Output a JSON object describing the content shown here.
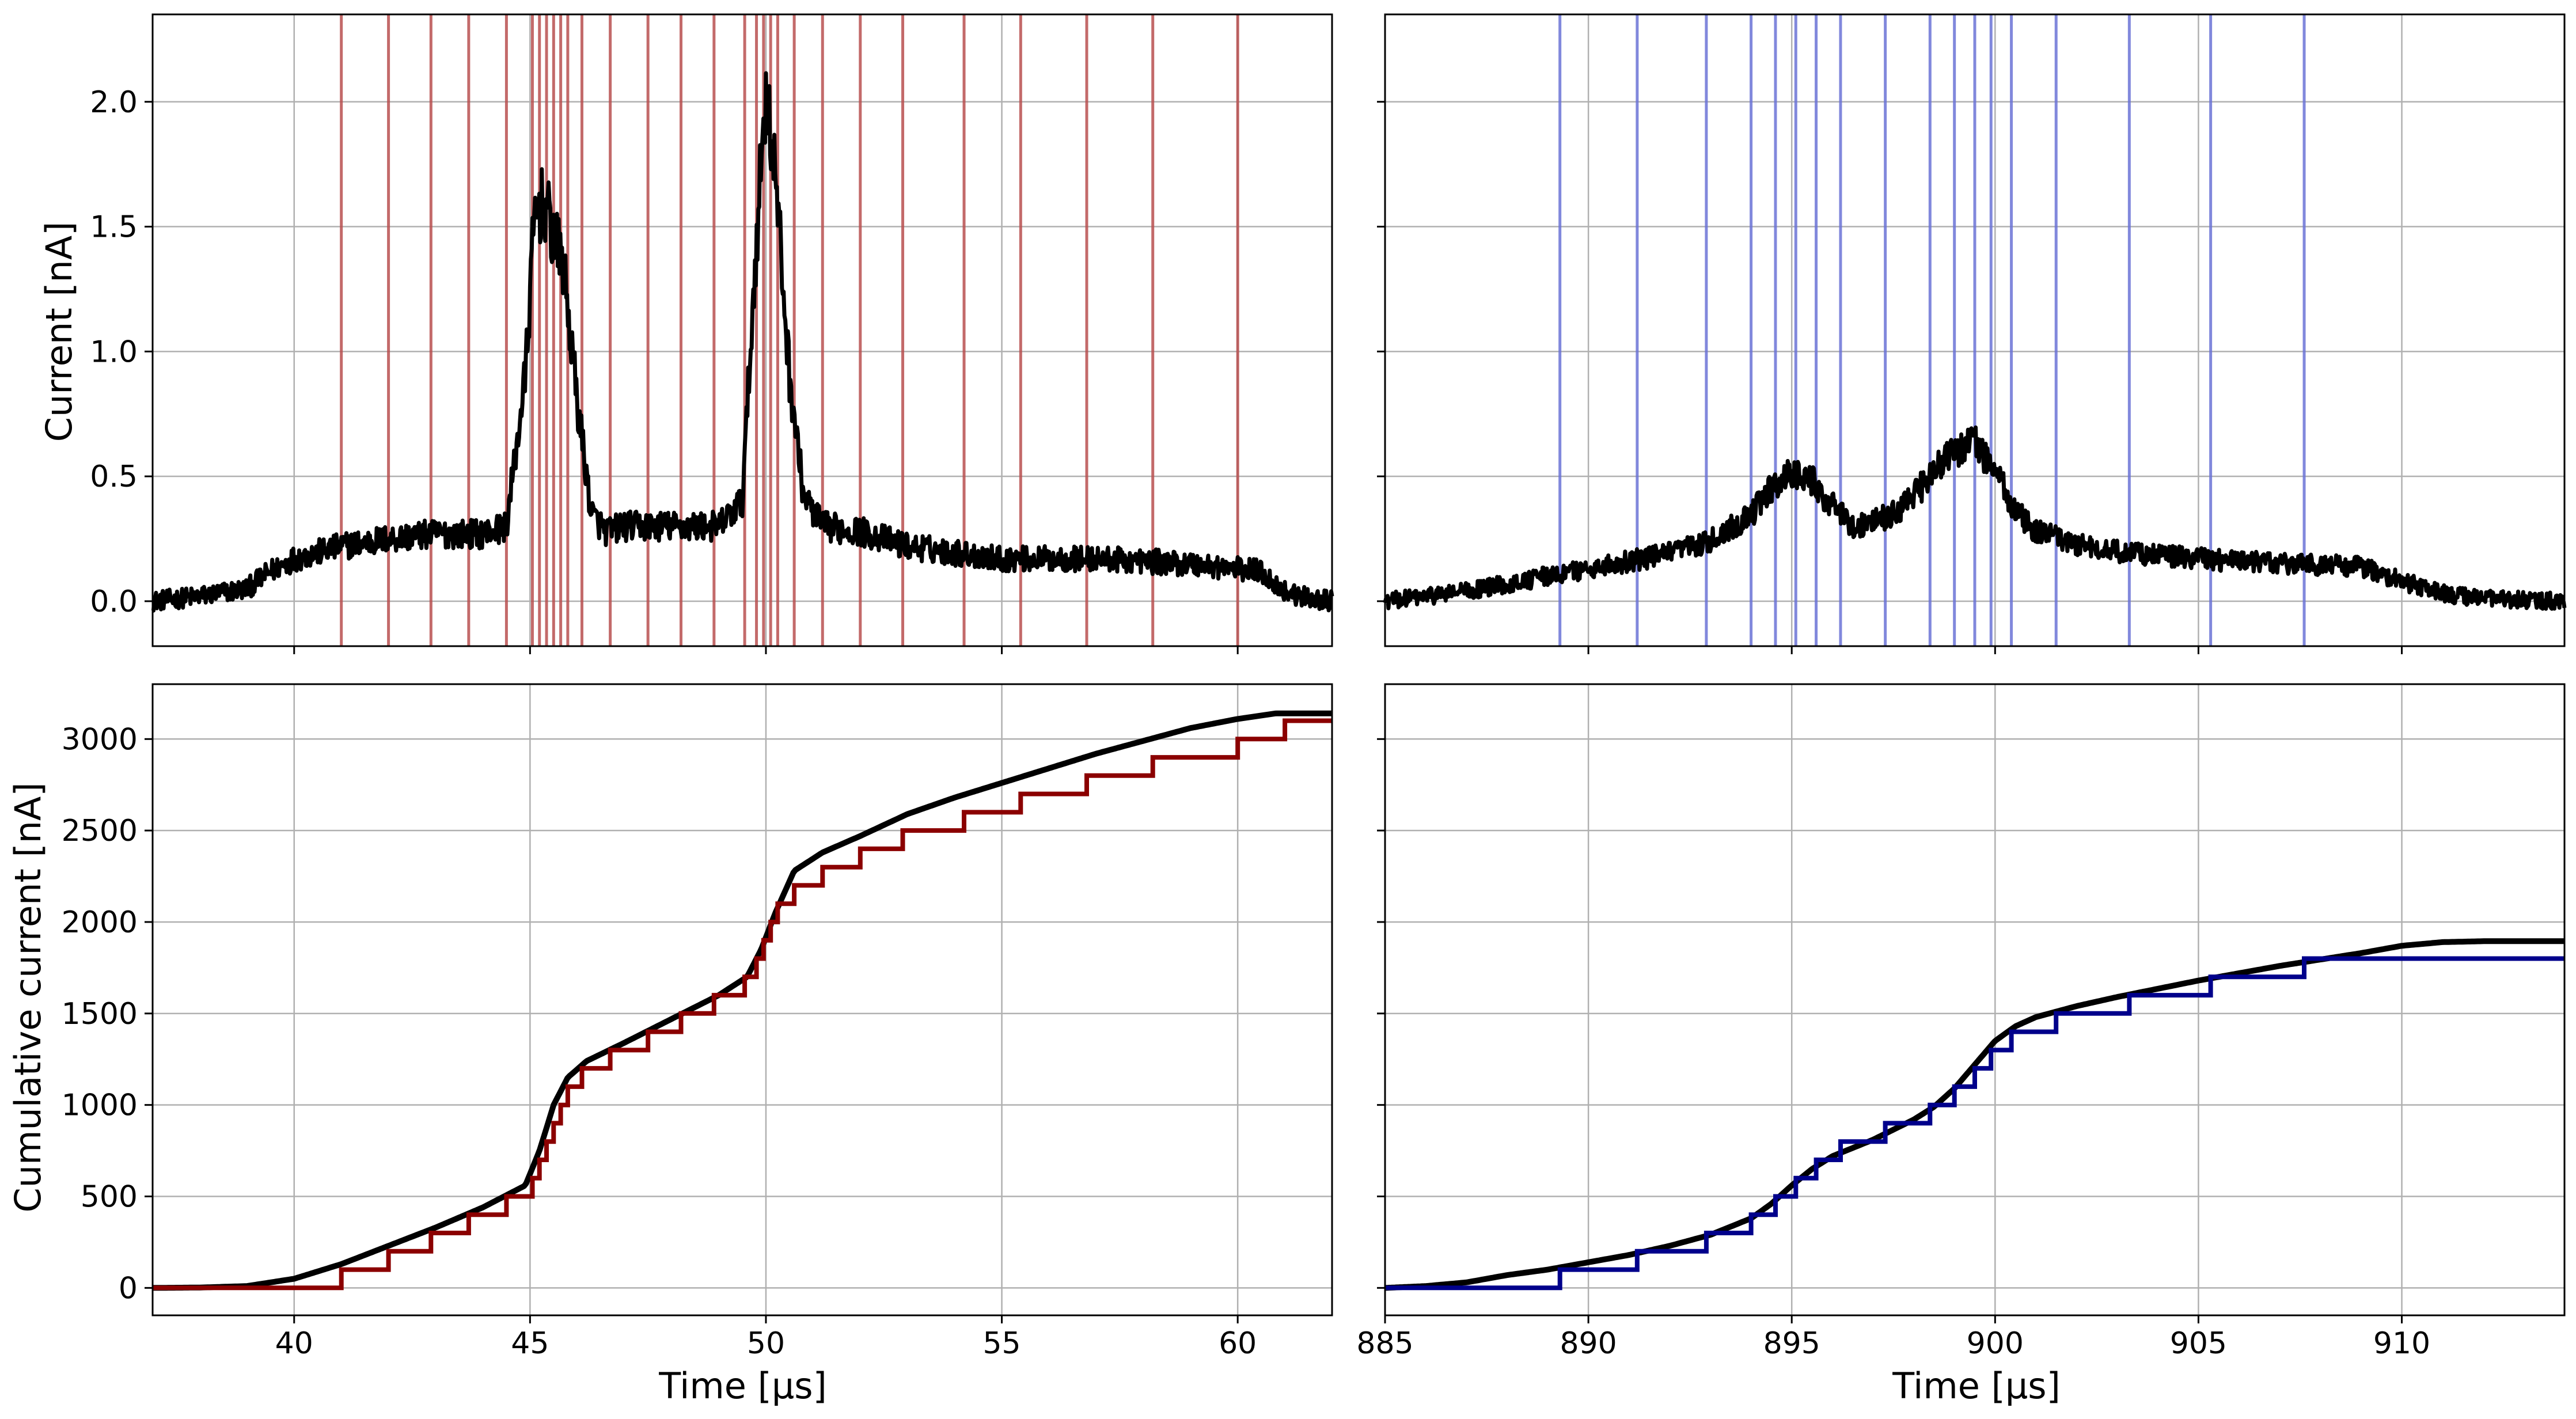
{
  "colors": {
    "signal": "#000000",
    "red_markers": "#b85050",
    "blue_markers": "#6b73d6",
    "red_steps": "#8b0000",
    "blue_steps": "#00008b",
    "grid": "#b0b0b0"
  },
  "chart_data": [
    {
      "id": "top-left",
      "type": "line",
      "ylabel": "Current [nA]",
      "xlabel": "",
      "xlim": [
        37,
        62
      ],
      "ylim": [
        -0.18,
        2.35
      ],
      "xticks": [
        40,
        45,
        50,
        55,
        60
      ],
      "yticks": [
        0.0,
        0.5,
        1.0,
        1.5,
        2.0
      ],
      "ytick_labels": [
        "0.0",
        "0.5",
        "1.0",
        "1.5",
        "2.0"
      ],
      "show_x_tick_labels": false,
      "grid": true,
      "series": [
        {
          "style": "noisy-signal",
          "color": "#000000",
          "noise_amplitude": 0.065,
          "x": [
            37,
            38,
            39,
            39.5,
            40,
            41,
            42,
            43,
            44,
            44.5,
            44.9,
            45.1,
            45.3,
            45.5,
            45.7,
            46.0,
            46.3,
            46.6,
            47,
            48,
            49,
            49.5,
            49.8,
            50.0,
            50.2,
            50.5,
            50.8,
            51.2,
            52,
            53,
            55,
            57,
            59,
            60.5,
            60.9,
            61.3,
            62
          ],
          "y": [
            0.0,
            0.02,
            0.05,
            0.12,
            0.17,
            0.22,
            0.25,
            0.27,
            0.27,
            0.3,
            0.9,
            1.55,
            1.6,
            1.45,
            1.35,
            0.8,
            0.35,
            0.28,
            0.3,
            0.3,
            0.3,
            0.4,
            1.45,
            2.05,
            1.7,
            0.9,
            0.42,
            0.3,
            0.28,
            0.22,
            0.17,
            0.17,
            0.15,
            0.12,
            0.05,
            0.02,
            0.0
          ]
        }
      ],
      "vlines": {
        "color": "#b85050",
        "x": [
          41.0,
          42.0,
          42.9,
          43.7,
          44.5,
          45.05,
          45.2,
          45.35,
          45.5,
          45.65,
          45.8,
          46.1,
          46.7,
          47.5,
          48.2,
          48.9,
          49.55,
          49.8,
          49.95,
          50.1,
          50.25,
          50.6,
          51.2,
          52.0,
          52.9,
          54.2,
          55.4,
          56.8,
          58.2,
          60.0
        ]
      }
    },
    {
      "id": "top-right",
      "type": "line",
      "ylabel": "",
      "xlabel": "",
      "xlim": [
        885,
        914
      ],
      "ylim": [
        -0.18,
        2.35
      ],
      "xticks": [
        890,
        895,
        900,
        905,
        910
      ],
      "yticks": [
        0.0,
        0.5,
        1.0,
        1.5,
        2.0
      ],
      "show_x_tick_labels": false,
      "grid": true,
      "series": [
        {
          "style": "noisy-signal",
          "color": "#000000",
          "noise_amplitude": 0.055,
          "x": [
            885,
            886,
            887,
            888,
            889,
            890,
            891,
            892,
            893,
            894,
            894.5,
            895,
            895.5,
            896,
            896.5,
            897,
            897.5,
            898,
            898.5,
            899,
            899.5,
            900,
            900.5,
            901,
            902,
            903,
            905,
            907,
            909,
            910,
            911,
            912,
            914
          ],
          "y": [
            0.0,
            0.02,
            0.04,
            0.07,
            0.1,
            0.13,
            0.16,
            0.19,
            0.24,
            0.35,
            0.45,
            0.52,
            0.48,
            0.38,
            0.3,
            0.32,
            0.35,
            0.42,
            0.52,
            0.6,
            0.64,
            0.52,
            0.36,
            0.28,
            0.23,
            0.2,
            0.17,
            0.15,
            0.14,
            0.08,
            0.03,
            0.01,
            0.0
          ]
        }
      ],
      "vlines": {
        "color": "#6b73d6",
        "x": [
          889.3,
          891.2,
          892.9,
          894.0,
          894.6,
          895.1,
          895.6,
          896.2,
          897.3,
          898.4,
          899.0,
          899.5,
          899.9,
          900.4,
          901.5,
          903.3,
          905.3,
          907.6
        ]
      }
    },
    {
      "id": "bottom-left",
      "type": "line",
      "ylabel": "Cumulative current [nA]",
      "xlabel": "Time [μs]",
      "xlim": [
        37,
        62
      ],
      "ylim": [
        -150,
        3300
      ],
      "xticks": [
        40,
        45,
        50,
        55,
        60
      ],
      "xtick_labels": [
        "40",
        "45",
        "50",
        "55",
        "60"
      ],
      "yticks": [
        0,
        500,
        1000,
        1500,
        2000,
        2500,
        3000
      ],
      "ytick_labels": [
        "0",
        "500",
        "1000",
        "1500",
        "2000",
        "2500",
        "3000"
      ],
      "grid": true,
      "series": [
        {
          "style": "smooth",
          "color": "#000000",
          "x": [
            37,
            38,
            39,
            40,
            41,
            42,
            43,
            44,
            44.9,
            45.2,
            45.5,
            45.8,
            46.2,
            47,
            48,
            49,
            49.6,
            49.9,
            50.2,
            50.6,
            51.2,
            52,
            53,
            54,
            55,
            56,
            57,
            58,
            59,
            60,
            60.8,
            62
          ],
          "y": [
            0,
            2,
            10,
            50,
            130,
            230,
            330,
            440,
            560,
            750,
            1000,
            1150,
            1240,
            1340,
            1470,
            1600,
            1700,
            1850,
            2050,
            2280,
            2380,
            2470,
            2590,
            2680,
            2760,
            2840,
            2920,
            2990,
            3060,
            3110,
            3140,
            3140
          ]
        },
        {
          "style": "step",
          "color": "#8b0000",
          "start_x": 37,
          "end_x": 62,
          "step_height": 100,
          "steps_at": [
            41.0,
            42.0,
            42.9,
            43.7,
            44.5,
            45.05,
            45.2,
            45.35,
            45.5,
            45.65,
            45.8,
            46.1,
            46.7,
            47.5,
            48.2,
            48.9,
            49.55,
            49.8,
            49.95,
            50.1,
            50.25,
            50.6,
            51.2,
            52.0,
            52.9,
            54.2,
            55.4,
            56.8,
            58.2,
            60.0,
            61.0
          ]
        }
      ]
    },
    {
      "id": "bottom-right",
      "type": "line",
      "ylabel": "",
      "xlabel": "Time [μs]",
      "xlim": [
        885,
        914
      ],
      "ylim": [
        -150,
        3300
      ],
      "xticks": [
        885,
        890,
        895,
        900,
        905,
        910
      ],
      "xtick_labels": [
        "885",
        "890",
        "895",
        "900",
        "905",
        "910"
      ],
      "yticks": [
        0,
        500,
        1000,
        1500,
        2000,
        2500,
        3000
      ],
      "grid": true,
      "series": [
        {
          "style": "smooth",
          "color": "#000000",
          "x": [
            885,
            886,
            887,
            888,
            889,
            890,
            891,
            892,
            893,
            894,
            894.5,
            895,
            895.5,
            896,
            897,
            898,
            898.5,
            899,
            899.5,
            900,
            900.5,
            901,
            902,
            903,
            905,
            907,
            909,
            910,
            911,
            912,
            914
          ],
          "y": [
            0,
            10,
            30,
            70,
            100,
            140,
            180,
            230,
            290,
            380,
            460,
            560,
            650,
            720,
            810,
            920,
            990,
            1090,
            1220,
            1350,
            1430,
            1480,
            1540,
            1590,
            1680,
            1760,
            1830,
            1870,
            1890,
            1895,
            1895
          ]
        },
        {
          "style": "step",
          "color": "#00008b",
          "start_x": 885,
          "end_x": 914,
          "step_height": 100,
          "steps_at": [
            889.3,
            891.2,
            892.9,
            894.0,
            894.6,
            895.1,
            895.6,
            896.2,
            897.3,
            898.4,
            899.0,
            899.5,
            899.9,
            900.4,
            901.5,
            903.3,
            905.3,
            907.6
          ]
        }
      ]
    }
  ]
}
